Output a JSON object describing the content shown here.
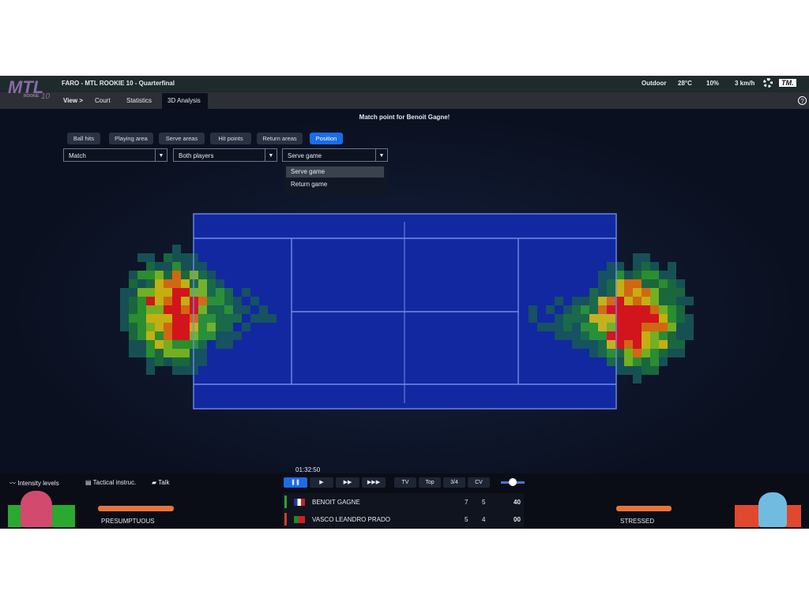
{
  "header": {
    "logo": "MTL",
    "logo_sub": "ROOKIE",
    "logo_num": "10",
    "title": "FARO - MTL ROOKIE 10 - Quarterfinal",
    "weather": {
      "condition": "Outdoor",
      "temperature": "28°C",
      "humidity": "10%",
      "wind": "3 km/h"
    },
    "brand": "TM."
  },
  "nav": {
    "view": "View >",
    "items": [
      "Court",
      "Statistics",
      "3D Analysis"
    ],
    "help": "?"
  },
  "banner": "Match point for Benoit Gagne!",
  "tabs": [
    "Ball hits",
    "Playing area",
    "Serve areas",
    "Hit points",
    "Return areas",
    "Position"
  ],
  "filters": [
    "Match",
    "Both players",
    "Serve game"
  ],
  "filter_options": [
    "Serve game",
    "Return game"
  ],
  "hud": {
    "buttons": [
      "Intensity levels",
      "Tactical instruc.",
      "Talk"
    ],
    "left_player_state": "PRESUMPTUOUS",
    "right_player_state": "STRESSED",
    "clock": "01:32:50",
    "views": [
      "TV",
      "Top",
      "3/4",
      "CV"
    ],
    "score": {
      "rows": [
        {
          "player": "BENOIT GAGNE",
          "sets": [
            "7",
            "5"
          ],
          "game": "40"
        },
        {
          "player": "VASCO LEANDRO PRADO",
          "sets": [
            "5",
            "4"
          ],
          "game": "00"
        }
      ]
    }
  }
}
